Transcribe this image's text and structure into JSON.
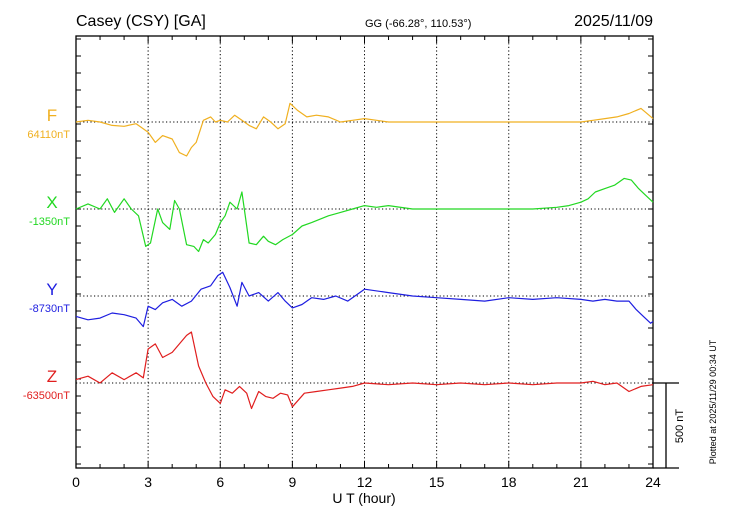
{
  "header": {
    "station": "Casey (CSY)  [GA]",
    "coords": "GG (-66.28°, 110.53°)",
    "date": "2025/11/09"
  },
  "footer_note": "Plotted at 2025/11/29 00:34 UT",
  "chart_data": {
    "type": "line",
    "xlabel": "U T (hour)",
    "xlim": [
      0,
      24
    ],
    "xticks": [
      "0",
      "3",
      "6",
      "9",
      "12",
      "15",
      "18",
      "21",
      "24"
    ],
    "scale_bar": "500 nT",
    "grid": true,
    "series": [
      {
        "name": "F",
        "baseline_label": "64110nT",
        "color": "#f0b020",
        "x": [
          0,
          0.5,
          1,
          1.5,
          2,
          2.5,
          3,
          3.3,
          3.6,
          4,
          4.3,
          4.6,
          4.8,
          5,
          5.3,
          5.6,
          5.8,
          6,
          6.3,
          6.6,
          6.9,
          7.2,
          7.5,
          7.8,
          8.1,
          8.4,
          8.7,
          8.9,
          9.2,
          9.6,
          10,
          10.5,
          11,
          11.5,
          12,
          13,
          14,
          15,
          16,
          17,
          18,
          19,
          20,
          21,
          21.5,
          22,
          22.5,
          23,
          23.5,
          24
        ],
        "y": [
          0,
          10,
          0,
          -20,
          -25,
          -10,
          -60,
          -120,
          -80,
          -100,
          -180,
          -200,
          -150,
          -120,
          10,
          30,
          0,
          10,
          0,
          40,
          10,
          -20,
          -40,
          30,
          0,
          -40,
          -10,
          110,
          70,
          30,
          40,
          30,
          0,
          10,
          20,
          0,
          0,
          0,
          0,
          0,
          0,
          0,
          0,
          0,
          10,
          20,
          30,
          50,
          80,
          20
        ]
      },
      {
        "name": "X",
        "baseline_label": "-1350nT",
        "color": "#22d822",
        "x": [
          0,
          0.5,
          1,
          1.3,
          1.6,
          2,
          2.3,
          2.6,
          2.9,
          3.1,
          3.4,
          3.6,
          3.9,
          4.1,
          4.3,
          4.6,
          4.9,
          5.1,
          5.3,
          5.5,
          5.8,
          6,
          6.2,
          6.4,
          6.7,
          6.9,
          7.2,
          7.5,
          7.8,
          8,
          8.3,
          8.6,
          9,
          9.4,
          9.8,
          10.5,
          11,
          11.5,
          12,
          12.5,
          13,
          14,
          15,
          16,
          17,
          18,
          19,
          20,
          20.5,
          21,
          21.3,
          21.6,
          22,
          22.4,
          22.8,
          23.1,
          23.4,
          23.7,
          24
        ],
        "y": [
          0,
          30,
          0,
          60,
          -20,
          60,
          0,
          -40,
          -220,
          -200,
          0,
          -80,
          -120,
          50,
          0,
          -210,
          -220,
          -250,
          -180,
          -200,
          -150,
          -80,
          -40,
          40,
          0,
          100,
          -200,
          -210,
          -160,
          -190,
          -210,
          -180,
          -150,
          -100,
          -80,
          -40,
          -20,
          0,
          20,
          10,
          20,
          0,
          0,
          0,
          0,
          0,
          0,
          10,
          20,
          40,
          60,
          100,
          120,
          140,
          180,
          170,
          120,
          80,
          40
        ]
      },
      {
        "name": "Y",
        "baseline_label": "-8730nT",
        "color": "#1e1ee0",
        "x": [
          0,
          0.5,
          1,
          1.5,
          2,
          2.5,
          2.8,
          3,
          3.3,
          3.6,
          4,
          4.4,
          4.8,
          5.2,
          5.6,
          5.9,
          6.1,
          6.4,
          6.7,
          6.9,
          7.2,
          7.6,
          8,
          8.4,
          8.7,
          9,
          9.4,
          9.8,
          10.3,
          10.8,
          11.3,
          12,
          13,
          14,
          15,
          16,
          17,
          18,
          19,
          20,
          21,
          21.5,
          22,
          22.5,
          23,
          23.3,
          23.6,
          23.9,
          24
        ],
        "y": [
          -120,
          -140,
          -130,
          -100,
          -110,
          -130,
          -180,
          -60,
          -80,
          -40,
          -20,
          -60,
          -30,
          40,
          60,
          120,
          140,
          50,
          -60,
          80,
          0,
          20,
          -30,
          20,
          -30,
          -70,
          -50,
          -10,
          -20,
          0,
          -30,
          40,
          20,
          0,
          -10,
          -20,
          -30,
          -10,
          -20,
          -10,
          -20,
          -30,
          -20,
          -30,
          -30,
          -80,
          -120,
          -160,
          -150
        ]
      },
      {
        "name": "Z",
        "baseline_label": "-63500nT",
        "color": "#e01e1e",
        "x": [
          0,
          0.5,
          1,
          1.5,
          2,
          2.5,
          2.8,
          3,
          3.3,
          3.6,
          4,
          4.3,
          4.6,
          4.8,
          5.1,
          5.4,
          5.7,
          6,
          6.2,
          6.5,
          6.8,
          7.1,
          7.3,
          7.6,
          7.9,
          8.2,
          8.5,
          8.8,
          9,
          9.5,
          10,
          10.5,
          11,
          11.5,
          12,
          13,
          14,
          15,
          16,
          17,
          18,
          19,
          20,
          21,
          21.5,
          22,
          22.5,
          23,
          23.5,
          24
        ],
        "y": [
          20,
          40,
          0,
          60,
          20,
          60,
          30,
          200,
          230,
          150,
          180,
          230,
          280,
          300,
          100,
          0,
          -80,
          -120,
          -40,
          -60,
          -20,
          -60,
          -150,
          -50,
          -80,
          -90,
          -60,
          -70,
          -140,
          -60,
          -50,
          -40,
          -30,
          -20,
          0,
          -10,
          0,
          -10,
          0,
          -10,
          0,
          -10,
          0,
          0,
          10,
          -10,
          0,
          -50,
          -20,
          -10
        ]
      }
    ]
  }
}
